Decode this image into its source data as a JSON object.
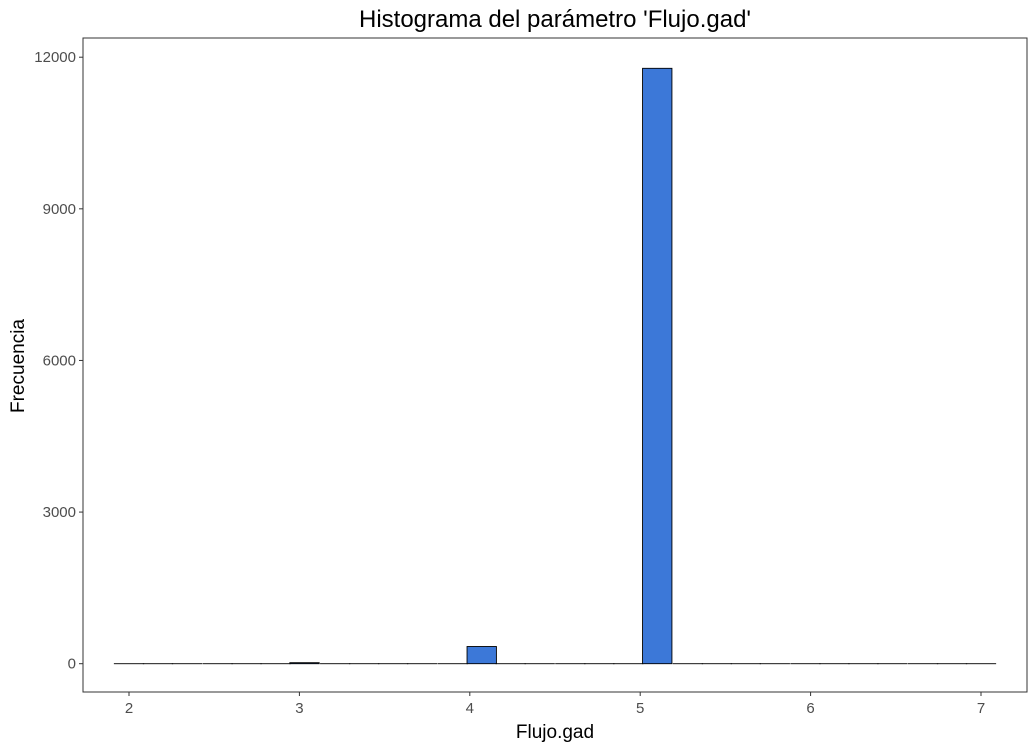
{
  "chart_data": {
    "type": "bar",
    "title": "Histograma del parámetro 'Flujo.gad'",
    "xlabel": "Flujo.gad",
    "ylabel": "Frecuencia",
    "xlim": [
      1.73,
      7.27
    ],
    "ylim": [
      -560,
      12380
    ],
    "x_ticks": [
      2,
      3,
      4,
      5,
      6,
      7
    ],
    "y_ticks": [
      0,
      3000,
      6000,
      9000,
      12000
    ],
    "x_tick_labels": [
      "2",
      "3",
      "4",
      "5",
      "6",
      "7"
    ],
    "y_tick_labels": [
      "0",
      "3000",
      "6000",
      "9000",
      "12000"
    ],
    "bin_width": 0.1724,
    "bins": [
      {
        "x": 2.0,
        "count": 0
      },
      {
        "x": 2.17,
        "count": 0
      },
      {
        "x": 2.34,
        "count": 0
      },
      {
        "x": 2.52,
        "count": 0
      },
      {
        "x": 2.69,
        "count": 0
      },
      {
        "x": 2.86,
        "count": 0
      },
      {
        "x": 3.03,
        "count": 20
      },
      {
        "x": 3.21,
        "count": 0
      },
      {
        "x": 3.38,
        "count": 0
      },
      {
        "x": 3.55,
        "count": 0
      },
      {
        "x": 3.72,
        "count": 0
      },
      {
        "x": 3.9,
        "count": 0
      },
      {
        "x": 4.07,
        "count": 340
      },
      {
        "x": 4.24,
        "count": 0
      },
      {
        "x": 4.41,
        "count": 0
      },
      {
        "x": 4.59,
        "count": 0
      },
      {
        "x": 4.76,
        "count": 0
      },
      {
        "x": 4.93,
        "count": 0
      },
      {
        "x": 5.1,
        "count": 11780
      },
      {
        "x": 5.28,
        "count": 0
      },
      {
        "x": 5.45,
        "count": 0
      },
      {
        "x": 5.62,
        "count": 0
      },
      {
        "x": 5.79,
        "count": 0
      },
      {
        "x": 5.97,
        "count": 0
      },
      {
        "x": 6.14,
        "count": 0
      },
      {
        "x": 6.31,
        "count": 0
      },
      {
        "x": 6.48,
        "count": 0
      },
      {
        "x": 6.66,
        "count": 0
      },
      {
        "x": 6.83,
        "count": 0
      },
      {
        "x": 7.0,
        "count": 0
      }
    ],
    "bar_fill": "#3c78d8",
    "bar_stroke": "#000000",
    "grid": false,
    "legend": "none"
  }
}
